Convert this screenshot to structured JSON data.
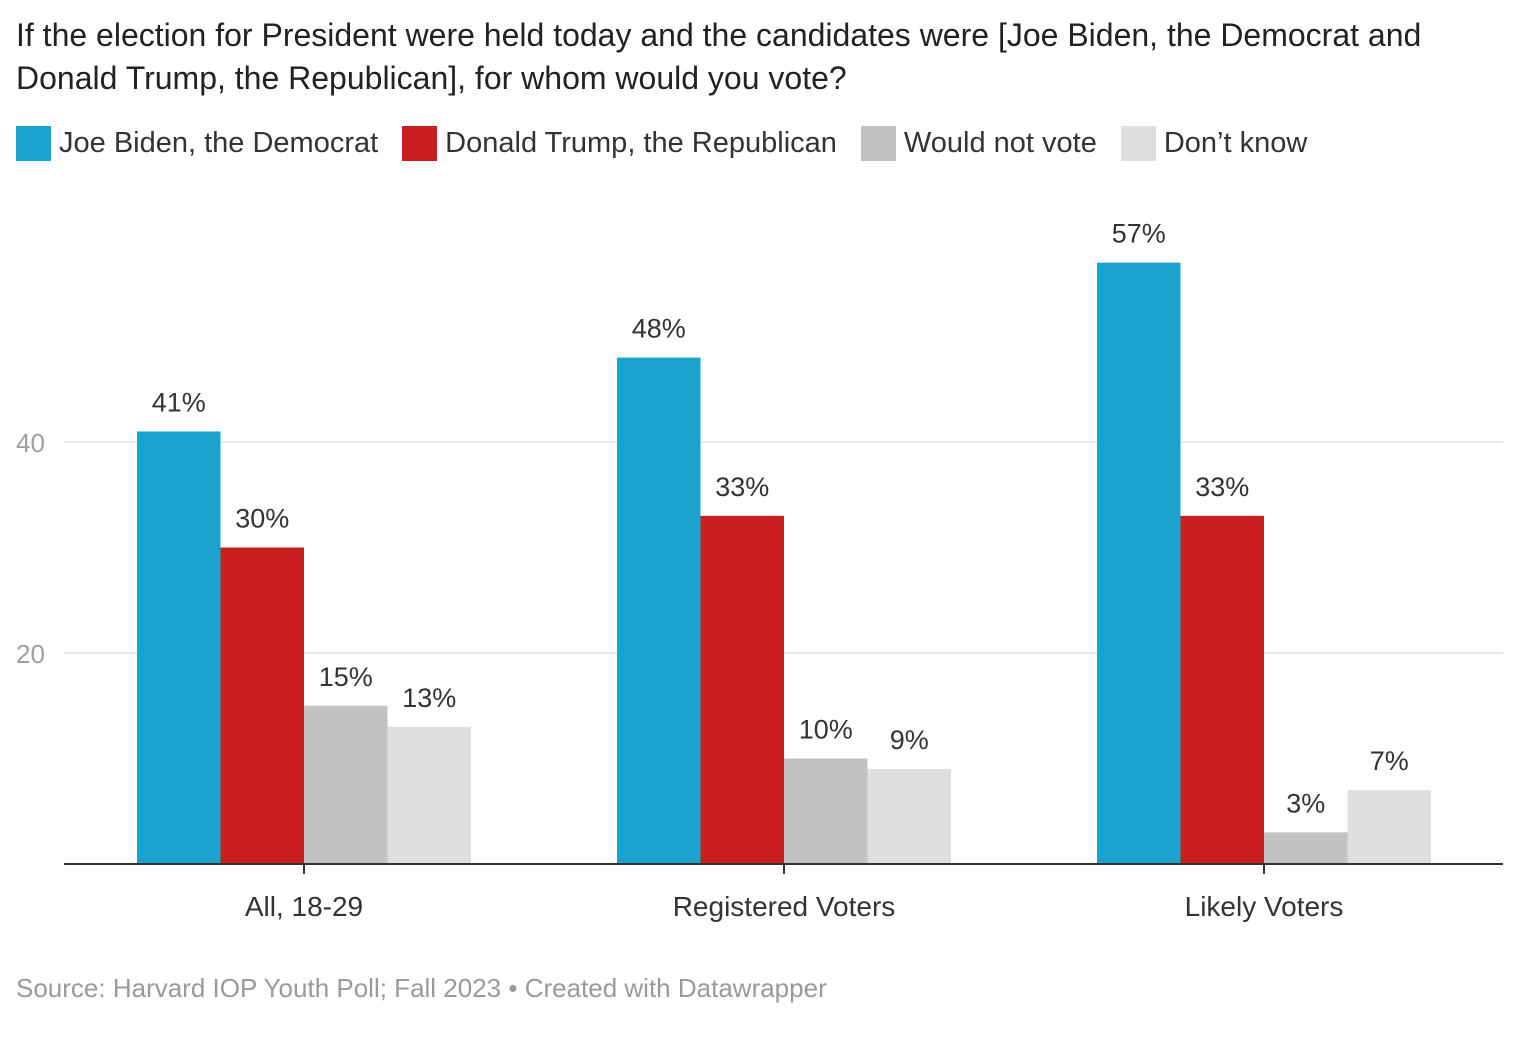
{
  "chart_data": {
    "type": "bar",
    "title": "If the election for President were held today and the candidates were [Joe Biden, the Democrat and Donald Trump, the Republican], for whom would you vote?",
    "categories": [
      "All, 18-29",
      "Registered Voters",
      "Likely Voters"
    ],
    "series": [
      {
        "name": "Joe Biden, the Democrat",
        "color": "#1ba3cf",
        "values": [
          41,
          48,
          57
        ]
      },
      {
        "name": "Donald Trump, the Republican",
        "color": "#c81e1e",
        "values": [
          30,
          33,
          33
        ]
      },
      {
        "name": "Would not vote",
        "color": "#c2c2c2",
        "values": [
          15,
          10,
          3
        ]
      },
      {
        "name": "Don’t know",
        "color": "#dfdfdf",
        "values": [
          13,
          9,
          7
        ]
      }
    ],
    "value_labels": [
      [
        "41%",
        "48%",
        "57%"
      ],
      [
        "30%",
        "33%",
        "33%"
      ],
      [
        "15%",
        "10%",
        "3%"
      ],
      [
        "13%",
        "9%",
        "7%"
      ]
    ],
    "y_ticks": [
      20,
      40
    ],
    "ylim": [
      0,
      60
    ],
    "grid": true,
    "legend_position": "top"
  },
  "source_text": "Source: Harvard IOP Youth Poll; Fall 2023 • Created with Datawrapper"
}
